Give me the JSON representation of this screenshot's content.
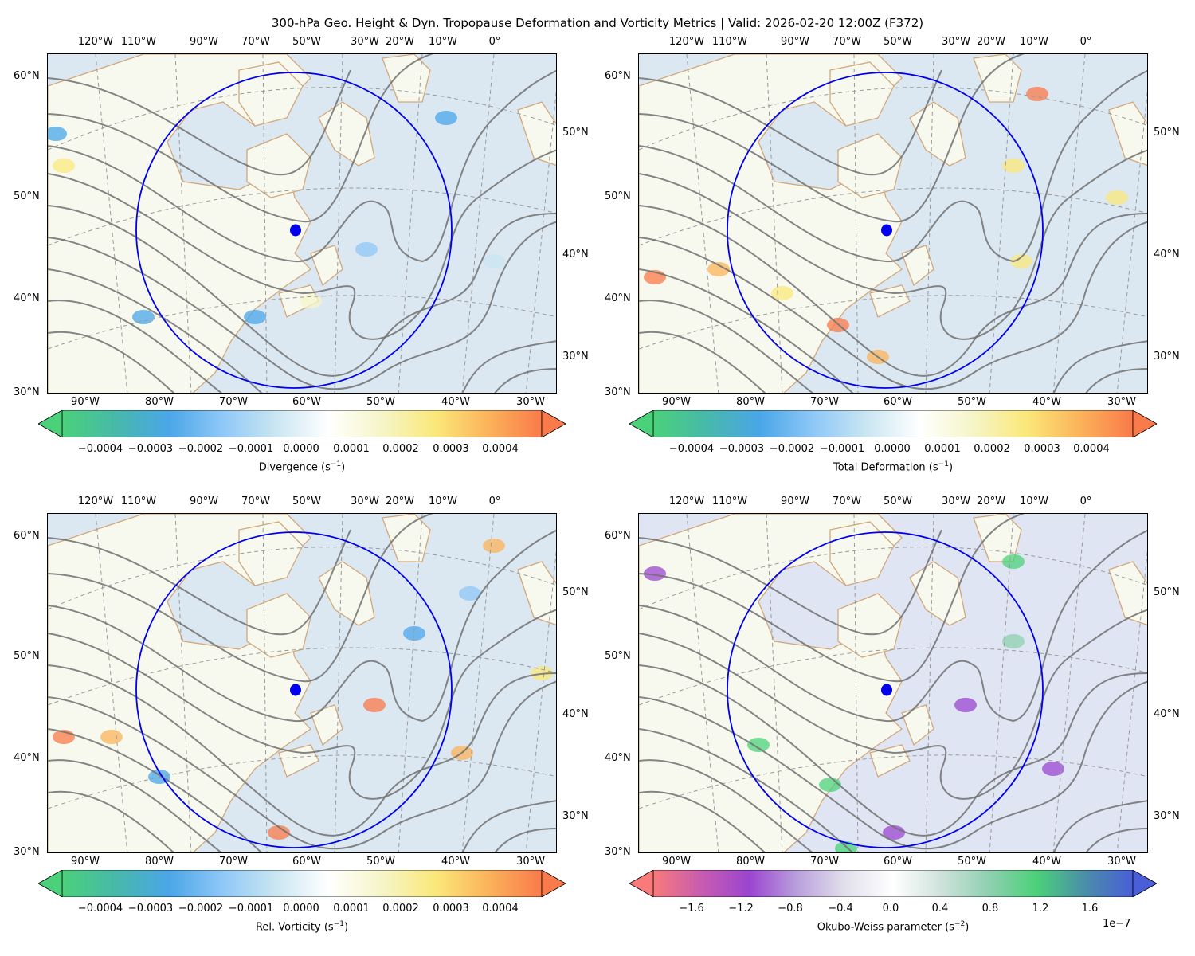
{
  "title": "300-hPa Geo. Height & Dyn. Tropopause Deformation and Vorticity Metrics |  Valid: 2026-02-20 12:00Z (F372)",
  "top_lon_labels": [
    "120°W",
    "110°W",
    "90°W",
    "70°W",
    "50°W",
    "30°W",
    "20°W",
    "10°W",
    "0°"
  ],
  "bottom_lon_labels": [
    "90°W",
    "80°W",
    "70°W",
    "60°W",
    "50°W",
    "40°W",
    "30°W"
  ],
  "left_lat_labels": [
    "60°N",
    "50°N",
    "40°N",
    "30°N"
  ],
  "right_lat_labels": [
    "50°N",
    "40°N",
    "30°N"
  ],
  "panels": [
    {
      "id": "divergence",
      "colorbar_label": "Divergence (s",
      "colorbar_unit_exp": "−1",
      "colorbar_label_close": ")",
      "ticks": [
        "−0.0004",
        "−0.0003",
        "−0.0002",
        "−0.0001",
        "0.0000",
        "0.0001",
        "0.0002",
        "0.0003",
        "0.0004"
      ],
      "scale_exponent": "",
      "colors": [
        "#4bd17a",
        "#47b9a9",
        "#4aa6e8",
        "#8ec7f7",
        "#c9e6f2",
        "#ffffff",
        "#f5f5c8",
        "#fbe87a",
        "#fbb35a",
        "#f97a4a"
      ]
    },
    {
      "id": "total-deformation",
      "colorbar_label": "Total Deformation (s",
      "colorbar_unit_exp": "−1",
      "colorbar_label_close": ")",
      "ticks": [
        "−0.0004",
        "−0.0003",
        "−0.0002",
        "−0.0001",
        "0.0000",
        "0.0001",
        "0.0002",
        "0.0003",
        "0.0004"
      ],
      "scale_exponent": "",
      "colors": [
        "#4bd17a",
        "#47b9a9",
        "#4aa6e8",
        "#8ec7f7",
        "#c9e6f2",
        "#ffffff",
        "#f5f5c8",
        "#fbe87a",
        "#fbb35a",
        "#f97a4a"
      ]
    },
    {
      "id": "relative-vorticity",
      "colorbar_label": "Rel. Vorticity (s",
      "colorbar_unit_exp": "−1",
      "colorbar_label_close": ")",
      "ticks": [
        "−0.0004",
        "−0.0003",
        "−0.0002",
        "−0.0001",
        "0.0000",
        "0.0001",
        "0.0002",
        "0.0003",
        "0.0004"
      ],
      "scale_exponent": "",
      "colors": [
        "#4bd17a",
        "#47b9a9",
        "#4aa6e8",
        "#8ec7f7",
        "#c9e6f2",
        "#ffffff",
        "#f5f5c8",
        "#fbe87a",
        "#fbb35a",
        "#f97a4a"
      ]
    },
    {
      "id": "okubo-weiss",
      "colorbar_label": "Okubo-Weiss parameter (s",
      "colorbar_unit_exp": "−2",
      "colorbar_label_close": ")",
      "ticks": [
        "−1.6",
        "−1.2",
        "−0.8",
        "−0.4",
        "0.0",
        "0.4",
        "0.8",
        "1.2",
        "1.6"
      ],
      "scale_exponent": "1e−7",
      "colors": [
        "#f87a7a",
        "#c85cb0",
        "#9b45d0",
        "#b9a0dc",
        "#e2e0ec",
        "#ffffff",
        "#cfe2dc",
        "#8fd0b0",
        "#4bd17a",
        "#4a8ea8",
        "#4a5ed8"
      ]
    }
  ],
  "map_colors": {
    "ocean": "#dbe7f1",
    "land": "#f7f9ef",
    "coastline": "#d2a779",
    "contour": "#707070",
    "circle": "#0000ee",
    "point": "#0000ee"
  }
}
